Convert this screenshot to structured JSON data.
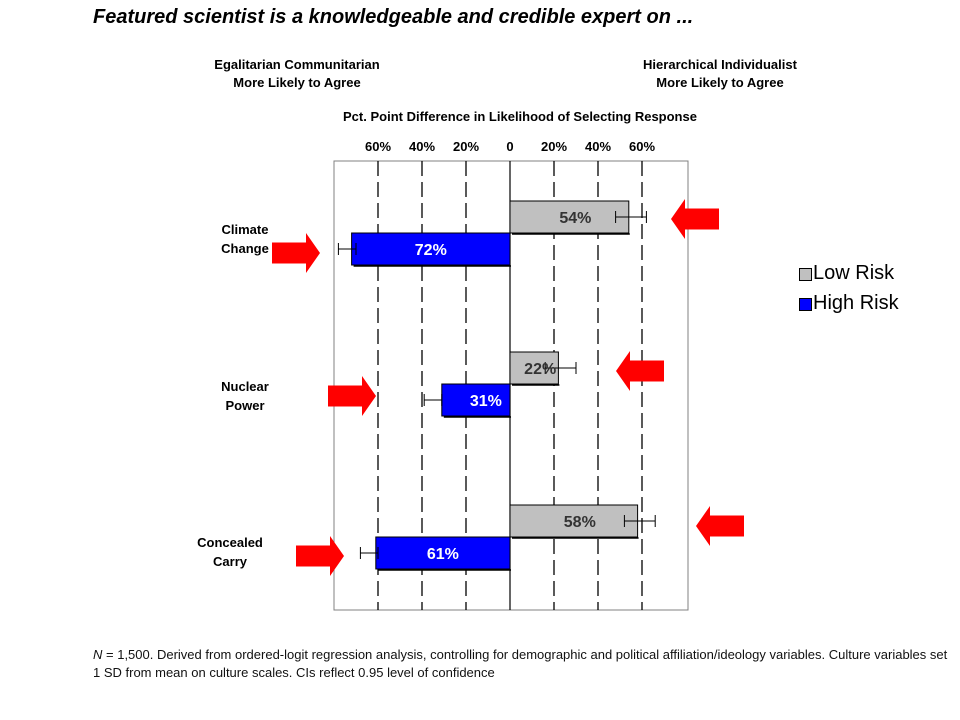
{
  "title": "Featured scientist is a knowledgeable and credible expert on ...",
  "left_header": {
    "line1": "Egalitarian Communitarian",
    "line2": "More Likely to Agree"
  },
  "right_header": {
    "line1": "Hierarchical Individualist",
    "line2": "More Likely to Agree"
  },
  "footnote": "= 1,500. Derived from ordered-logit regression analysis, controlling for demographic and political affiliation/ideology variables. Culture variables set 1 SD from mean on culture scales. CIs reflect 0.95 level of confidence",
  "footnote_n": "N",
  "colors": {
    "low_risk": "#c0c0c0",
    "high_risk": "#0000ff",
    "arrow": "#ff0000"
  },
  "chart_data": {
    "type": "bar",
    "orientation": "horizontal",
    "title": "Featured scientist is a knowledgeable and credible expert on ...",
    "xlabel": "Pct. Point Difference in Likelihood of Selecting Response",
    "xlim": [
      -80,
      80
    ],
    "xticks": [
      -60,
      -40,
      -20,
      0,
      20,
      40,
      60
    ],
    "xtick_labels": [
      "60%",
      "40%",
      "20%",
      "0",
      "20%",
      "40%",
      "60%"
    ],
    "grid": "dashed vertical lines at ticks",
    "categories": [
      {
        "line1": "Climate",
        "line2": "Change"
      },
      {
        "line1": "Nuclear",
        "line2": "Power"
      },
      {
        "line1": "Concealed",
        "line2": "Carry"
      }
    ],
    "series": [
      {
        "name": "Low Risk",
        "color": "#c0c0c0",
        "values": [
          54,
          22,
          58
        ],
        "labels": [
          "54%",
          "22%",
          "58%"
        ],
        "ci_low": [
          48,
          16,
          52
        ],
        "ci_high": [
          62,
          30,
          66
        ]
      },
      {
        "name": "High Risk",
        "color": "#0000ff",
        "values": [
          -72,
          -31,
          -61
        ],
        "labels": [
          "72%",
          "31%",
          "61%"
        ],
        "ci_low": [
          -78,
          -39,
          -68
        ],
        "ci_high": [
          -70,
          -31,
          -60
        ]
      }
    ],
    "legend": {
      "position": "right",
      "entries": [
        "Low Risk",
        "High Risk"
      ]
    },
    "highlight_arrows": true
  }
}
